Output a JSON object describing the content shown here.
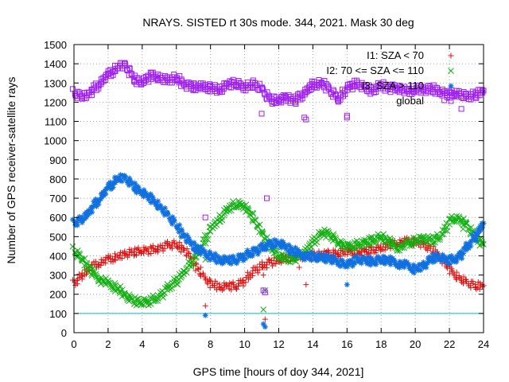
{
  "chart_data": {
    "type": "scatter",
    "title": "NRAYS. SISTED rt 30s mode. 344, 2021. Mask 30 deg",
    "xlabel": "GPS time [hours of doy 344, 2021]",
    "ylabel": "Number of GPS receiver-satellite rays",
    "xlim": [
      0,
      24
    ],
    "ylim": [
      0,
      1500
    ],
    "xticks": [
      0,
      2,
      4,
      6,
      8,
      10,
      12,
      14,
      16,
      18,
      20,
      22,
      24
    ],
    "yticks": [
      0,
      100,
      200,
      300,
      400,
      500,
      600,
      700,
      800,
      900,
      1000,
      1100,
      1200,
      1300,
      1400,
      1500
    ],
    "grid": true,
    "reference_line": {
      "y": 100,
      "color": "#00c0c0"
    },
    "legend_position": "top-right",
    "series": [
      {
        "name": "I1: SZA < 70",
        "marker": "+",
        "color": "#e01010",
        "x": [
          0,
          0.5,
          1,
          1.5,
          2,
          2.5,
          3,
          3.5,
          4,
          4.5,
          5,
          5.5,
          6,
          6.5,
          7,
          7.5,
          8,
          8.5,
          9,
          9.5,
          10,
          10.5,
          11,
          11.5,
          12,
          12.5,
          13,
          13.5,
          14,
          14.5,
          15,
          15.5,
          16,
          16.5,
          17,
          17.5,
          18,
          18.5,
          19,
          19.5,
          20,
          20.5,
          21,
          21.5,
          22,
          22.5,
          23,
          23.5,
          24
        ],
        "y": [
          255,
          300,
          340,
          365,
          380,
          395,
          410,
          420,
          425,
          430,
          440,
          455,
          460,
          430,
          370,
          300,
          255,
          240,
          240,
          245,
          270,
          320,
          345,
          365,
          380,
          385,
          395,
          400,
          405,
          405,
          410,
          415,
          420,
          420,
          425,
          430,
          440,
          455,
          470,
          475,
          475,
          460,
          430,
          390,
          330,
          290,
          260,
          245,
          245
        ],
        "outliers": [
          [
            7.7,
            140
          ],
          [
            11.1,
            300
          ],
          [
            11.2,
            70
          ],
          [
            13.2,
            340
          ],
          [
            13.6,
            250
          ],
          [
            16.1,
            430
          ]
        ]
      },
      {
        "name": "I2: 70 <= SZA <= 110",
        "marker": "x",
        "color": "#10b010",
        "x": [
          0,
          0.5,
          1,
          1.5,
          2,
          2.5,
          3,
          3.5,
          4,
          4.5,
          5,
          5.5,
          6,
          6.5,
          7,
          7.5,
          8,
          8.5,
          9,
          9.5,
          10,
          10.5,
          11,
          11.5,
          12,
          12.5,
          13,
          13.5,
          14,
          14.5,
          15,
          15.5,
          16,
          16.5,
          17,
          17.5,
          18,
          18.5,
          19,
          19.5,
          20,
          20.5,
          21,
          21.5,
          22,
          22.5,
          23,
          23.5,
          24
        ],
        "y": [
          430,
          380,
          320,
          280,
          255,
          235,
          195,
          165,
          155,
          165,
          190,
          230,
          270,
          320,
          380,
          450,
          540,
          590,
          640,
          670,
          660,
          600,
          520,
          450,
          400,
          380,
          390,
          420,
          470,
          520,
          510,
          470,
          445,
          455,
          470,
          480,
          500,
          470,
          440,
          460,
          480,
          490,
          480,
          500,
          580,
          600,
          560,
          500,
          460
        ],
        "outliers": [
          [
            7.7,
            380
          ],
          [
            11.1,
            120
          ],
          [
            11.2,
            220
          ],
          [
            13.0,
            390
          ],
          [
            22.8,
            540
          ]
        ]
      },
      {
        "name": "I3: SZA > 110",
        "marker": "*",
        "color": "#1070e0",
        "x": [
          0,
          0.5,
          1,
          1.5,
          2,
          2.5,
          3,
          3.5,
          4,
          4.5,
          5,
          5.5,
          6,
          6.5,
          7,
          7.5,
          8,
          8.5,
          9,
          9.5,
          10,
          10.5,
          11,
          11.5,
          12,
          12.5,
          13,
          13.5,
          14,
          14.5,
          15,
          15.5,
          16,
          16.5,
          17,
          17.5,
          18,
          18.5,
          19,
          19.5,
          20,
          20.5,
          21,
          21.5,
          22,
          22.5,
          23,
          23.5,
          24
        ],
        "y": [
          570,
          590,
          640,
          700,
          750,
          800,
          810,
          760,
          730,
          700,
          660,
          610,
          560,
          500,
          450,
          420,
          400,
          380,
          375,
          380,
          400,
          420,
          440,
          460,
          470,
          440,
          420,
          400,
          395,
          390,
          385,
          370,
          350,
          380,
          380,
          370,
          380,
          375,
          360,
          350,
          330,
          350,
          390,
          390,
          375,
          390,
          440,
          500,
          570
        ],
        "outliers": [
          [
            7.7,
            90
          ],
          [
            11.1,
            45
          ],
          [
            11.2,
            30
          ],
          [
            16.0,
            250
          ]
        ]
      },
      {
        "name": "global",
        "marker": "square",
        "color": "#a020f0",
        "x": [
          0,
          0.5,
          1,
          1.5,
          2,
          2.5,
          3,
          3.5,
          4,
          4.5,
          5,
          5.5,
          6,
          6.5,
          7,
          7.5,
          8,
          8.5,
          9,
          9.5,
          10,
          10.5,
          11,
          11.5,
          12,
          12.5,
          13,
          13.5,
          14,
          14.5,
          15,
          15.5,
          16,
          16.5,
          17,
          17.5,
          18,
          18.5,
          19,
          19.5,
          20,
          20.5,
          21,
          21.5,
          22,
          22.5,
          23,
          23.5,
          24
        ],
        "y": [
          1250,
          1225,
          1250,
          1300,
          1340,
          1380,
          1400,
          1320,
          1300,
          1340,
          1330,
          1310,
          1330,
          1290,
          1280,
          1280,
          1275,
          1265,
          1290,
          1300,
          1275,
          1295,
          1270,
          1210,
          1215,
          1220,
          1210,
          1250,
          1290,
          1300,
          1265,
          1215,
          1270,
          1300,
          1280,
          1260,
          1290,
          1270,
          1280,
          1250,
          1270,
          1265,
          1270,
          1250,
          1240,
          1250,
          1225,
          1240,
          1260
        ],
        "outliers": [
          [
            7.7,
            600
          ],
          [
            11.0,
            1140
          ],
          [
            11.1,
            220
          ],
          [
            11.2,
            210
          ],
          [
            11.3,
            700
          ],
          [
            13.5,
            1120
          ],
          [
            13.6,
            1110
          ],
          [
            16.0,
            1130
          ],
          [
            16.0,
            1120
          ],
          [
            21.7,
            1210
          ],
          [
            22.7,
            1165
          ]
        ]
      }
    ]
  }
}
